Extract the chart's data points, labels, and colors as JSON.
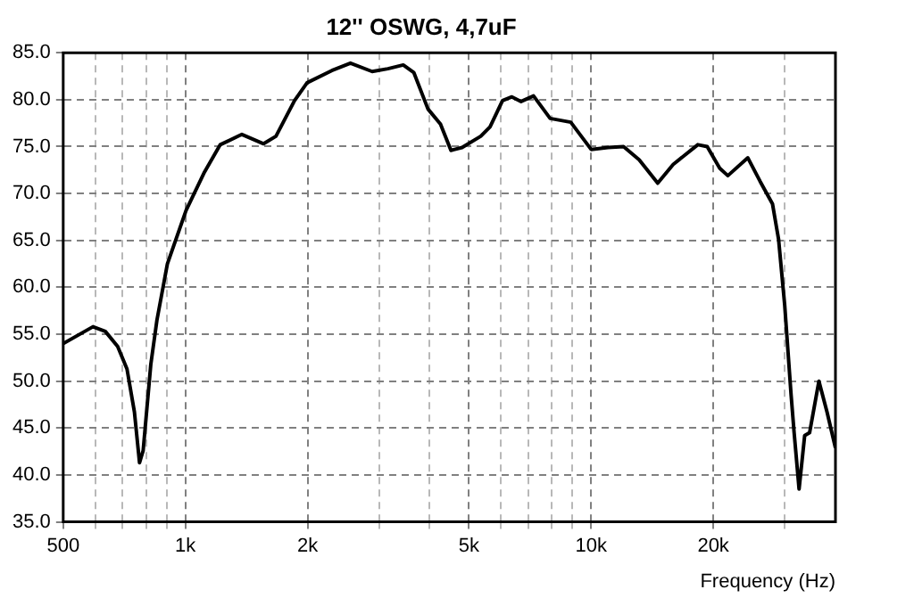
{
  "chart_data": {
    "type": "line",
    "title": "12'' OSWG, 4,7uF",
    "xlabel": "Frequency (Hz)",
    "log": "x",
    "grid": true,
    "legend": false,
    "marker": "none",
    "line_style": "solid",
    "xlim": [
      500,
      40000
    ],
    "xticks": [
      {
        "value": 500,
        "label": "500"
      },
      {
        "value": 600,
        "label": null
      },
      {
        "value": 700,
        "label": null
      },
      {
        "value": 800,
        "label": null
      },
      {
        "value": 900,
        "label": null
      },
      {
        "value": 1000,
        "label": "1k"
      },
      {
        "value": 2000,
        "label": "2k"
      },
      {
        "value": 3000,
        "label": null
      },
      {
        "value": 4000,
        "label": null
      },
      {
        "value": 5000,
        "label": "5k"
      },
      {
        "value": 6000,
        "label": null
      },
      {
        "value": 7000,
        "label": null
      },
      {
        "value": 8000,
        "label": null
      },
      {
        "value": 9000,
        "label": null
      },
      {
        "value": 10000,
        "label": "10k"
      },
      {
        "value": 20000,
        "label": "20k"
      },
      {
        "value": 30000,
        "label": null
      }
    ],
    "ylim": [
      35,
      85
    ],
    "yticks": [
      {
        "value": 35,
        "label": "35.0"
      },
      {
        "value": 40,
        "label": "40.0"
      },
      {
        "value": 45,
        "label": "45.0"
      },
      {
        "value": 50,
        "label": "50.0"
      },
      {
        "value": 55,
        "label": "55.0"
      },
      {
        "value": 60,
        "label": "60.0"
      },
      {
        "value": 65,
        "label": "65.0"
      },
      {
        "value": 70,
        "label": "70.0"
      },
      {
        "value": 75,
        "label": "75.0"
      },
      {
        "value": 80,
        "label": "80.0"
      },
      {
        "value": 85,
        "label": "85.0"
      }
    ],
    "series": [
      {
        "color": "#000000",
        "x": [
          500,
          592,
          635,
          681,
          718,
          749,
          771,
          787,
          822,
          851,
          903,
          1004,
          1115,
          1219,
          1378,
          1559,
          1672,
          1858,
          1995,
          2295,
          2552,
          2886,
          3155,
          3443,
          3655,
          3962,
          4253,
          4514,
          4808,
          5345,
          5634,
          6048,
          6378,
          6719,
          7212,
          7924,
          8907,
          10000,
          11010,
          12020,
          13130,
          14590,
          15930,
          18320,
          19320,
          20740,
          21720,
          24330,
          26080,
          27980,
          28970,
          29990,
          31090,
          31640,
          32540,
          33590,
          34540,
          36420,
          38140,
          40000
        ],
        "values": [
          54.0,
          55.8,
          55.3,
          53.7,
          51.3,
          46.7,
          41.3,
          42.6,
          51.8,
          56.5,
          62.5,
          68.2,
          72.3,
          75.2,
          76.3,
          75.3,
          76.1,
          79.9,
          81.8,
          83.1,
          83.9,
          83.0,
          83.3,
          83.7,
          82.9,
          79.0,
          77.4,
          74.6,
          74.9,
          76.1,
          77.1,
          79.9,
          80.3,
          79.8,
          80.4,
          78.0,
          77.6,
          74.7,
          74.9,
          75.0,
          73.6,
          71.1,
          73.1,
          75.2,
          75.0,
          72.7,
          71.9,
          73.8,
          71.3,
          68.9,
          65.1,
          58.1,
          48.6,
          44.5,
          38.5,
          44.2,
          44.5,
          50.0,
          46.7,
          42.9
        ]
      }
    ]
  }
}
